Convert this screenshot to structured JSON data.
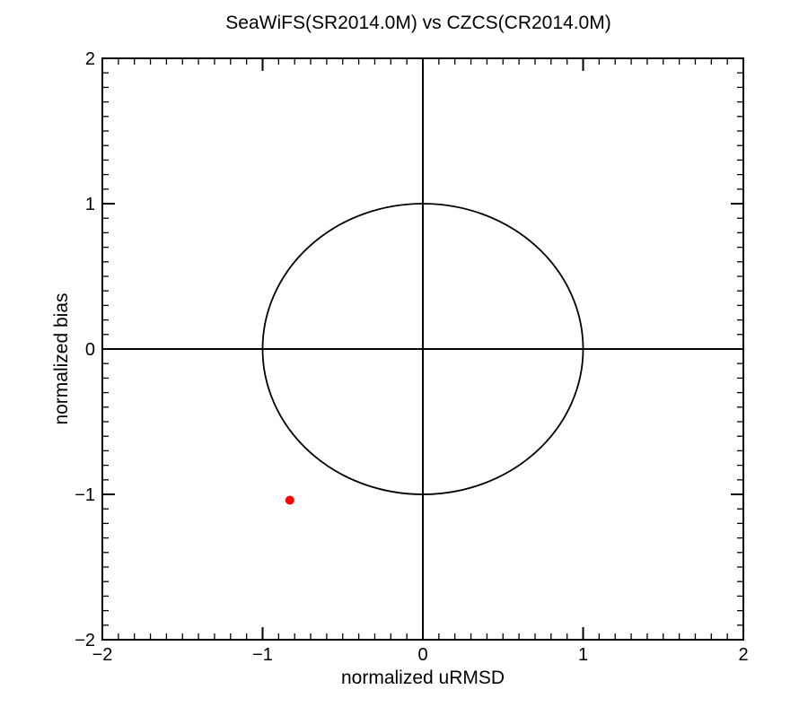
{
  "figure": {
    "background": "#ffffff"
  },
  "chart_data": {
    "type": "scatter",
    "title": "SeaWiFS(SR2014.0M) vs CZCS(CR2014.0M)",
    "xlabel": "normalized uRMSD",
    "ylabel": "normalized bias",
    "xlim": [
      -2,
      2
    ],
    "ylim": [
      -2,
      2
    ],
    "xticks": [
      -2,
      -1,
      0,
      1,
      2
    ],
    "yticks": [
      -2,
      -1,
      0,
      1,
      2
    ],
    "xtick_labels": [
      "−2",
      "−1",
      "0",
      "1",
      "2"
    ],
    "ytick_labels": [
      "−2",
      "−1",
      "0",
      "1",
      "2"
    ],
    "minor_tick_step": 0.1,
    "grid": false,
    "axis_color": "#000000",
    "zero_lines": true,
    "reference_circle": {
      "cx": 0,
      "cy": 0,
      "radius": 1,
      "color": "#000000"
    },
    "series": [
      {
        "name": "matchup-point",
        "marker": "filled-circle",
        "color": "#ff0000",
        "points": [
          {
            "x": -0.83,
            "y": -1.04
          }
        ]
      }
    ]
  }
}
